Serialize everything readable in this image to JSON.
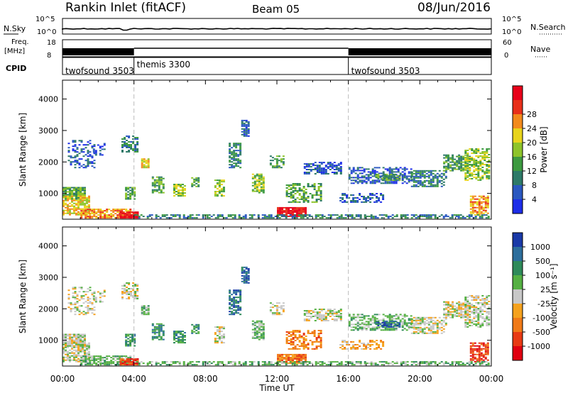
{
  "header": {
    "site": "Rankin Inlet (fitACF)",
    "beam": "Beam 05",
    "date": "08/Jun/2016"
  },
  "strip_labels": {
    "nsky": "N.Sky",
    "nsky_ticks": [
      "10^5",
      "10^0"
    ],
    "nsearch": "N.Search",
    "nsearch_ticks": [
      "10^5",
      "10^0"
    ],
    "freq": "Freq.",
    "freq_unit": "[MHz]",
    "freq_ticks": [
      "18",
      "8"
    ],
    "nave": "Nave",
    "nave_ticks": [
      "60",
      "0"
    ],
    "cpid": "CPID"
  },
  "cpid_segments": [
    {
      "label": "twofsound 3503",
      "start_hour": 0
    },
    {
      "label": "themis 3300",
      "start_hour": 4
    },
    {
      "label": "twofsound 3503",
      "start_hour": 16
    }
  ],
  "colors": {
    "noise_line": "#000000",
    "guide_line": "#bbbbbb"
  },
  "chart_data": [
    {
      "type": "heatmap",
      "panel": "power",
      "xlabel": "",
      "ylabel": "Slant Range [km]",
      "xlim": [
        0,
        24
      ],
      "ylim": [
        180,
        4600
      ],
      "y_ticks": [
        "1000",
        "2000",
        "3000",
        "4000"
      ],
      "colorbar": {
        "label": "Power [dB]",
        "ticks": [
          "4",
          "8",
          "12",
          "16",
          "20",
          "24",
          "28"
        ],
        "colors": [
          "#1d2de8",
          "#2a58c0",
          "#2d7a68",
          "#3d9a40",
          "#8ec42a",
          "#e8d41c",
          "#f28a1c",
          "#e8301a",
          "#e8001a"
        ]
      }
    },
    {
      "type": "heatmap",
      "panel": "velocity",
      "xlabel": "Time UT",
      "ylabel": "Slant Range [km]",
      "xlim": [
        0,
        24
      ],
      "ylim": [
        180,
        4600
      ],
      "x_ticks": [
        "00:00",
        "04:00",
        "08:00",
        "12:00",
        "16:00",
        "20:00",
        "00:00"
      ],
      "y_ticks": [
        "1000",
        "2000",
        "3000",
        "4000"
      ],
      "colorbar": {
        "label": "Velocity [m s⁻¹]",
        "ticks": [
          "1000",
          "500",
          "100",
          "25",
          "-25",
          "-100",
          "-500",
          "-1000"
        ],
        "colors": [
          "#1a3aa8",
          "#2d6e9c",
          "#2e8a5a",
          "#55b043",
          "#c8c8c8",
          "#f5a21e",
          "#f07a18",
          "#e83a14",
          "#e00010"
        ]
      }
    }
  ]
}
